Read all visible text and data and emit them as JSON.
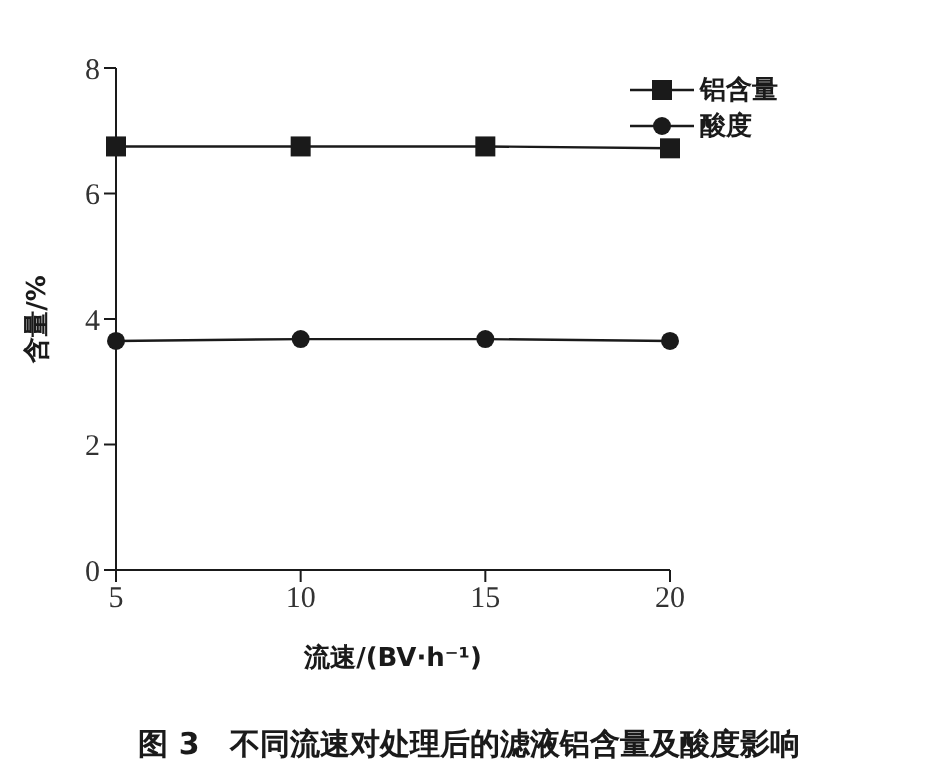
{
  "chart_data": {
    "type": "line",
    "title": "图 3　不同流速对处理后的滤液铝含量及酸度影响",
    "xlabel": "流速/(BV·h⁻¹)",
    "ylabel": "含量/%",
    "x": [
      5,
      10,
      15,
      20
    ],
    "xlim": [
      5,
      20
    ],
    "xticks": [
      5,
      10,
      15,
      20
    ],
    "ylim": [
      0,
      8
    ],
    "yticks": [
      0,
      2,
      4,
      6,
      8
    ],
    "series": [
      {
        "name": "铝含量",
        "color": "#1a1a1a",
        "marker": "square",
        "values": [
          6.75,
          6.75,
          6.75,
          6.72
        ]
      },
      {
        "name": "酸度",
        "color": "#1a1a1a",
        "marker": "circle",
        "values": [
          3.65,
          3.68,
          3.68,
          3.65
        ]
      }
    ],
    "legend": "top right",
    "grid": false,
    "line_style": "solid"
  }
}
